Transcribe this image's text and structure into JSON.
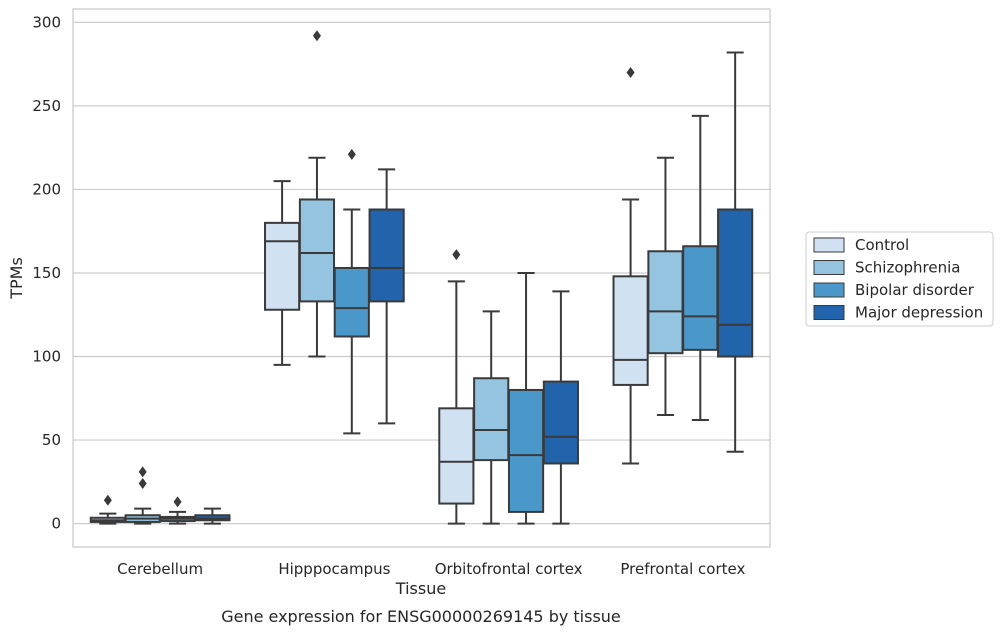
{
  "chart_data": {
    "type": "box",
    "title": "",
    "caption": "Gene expression for ENSG00000269145 by tissue",
    "xlabel": "Tissue",
    "ylabel": "TPMs",
    "ylim": [
      -14,
      308
    ],
    "yticks": [
      0,
      50,
      100,
      150,
      200,
      250,
      300
    ],
    "grid": true,
    "legend_position": "right",
    "categories": [
      "Cerebellum",
      "Hipppocampus",
      "Orbitofrontal cortex",
      "Prefrontal cortex"
    ],
    "series": [
      {
        "name": "Control",
        "color": "#d0e1f2",
        "boxes": [
          {
            "whisker_low": 0,
            "q1": 1,
            "median": 2,
            "q3": 3.5,
            "whisker_high": 6,
            "outliers": [
              14
            ]
          },
          {
            "whisker_low": 95,
            "q1": 128,
            "median": 169,
            "q3": 180,
            "whisker_high": 205,
            "outliers": []
          },
          {
            "whisker_low": 0,
            "q1": 12,
            "median": 37,
            "q3": 69,
            "whisker_high": 145,
            "outliers": [
              161
            ]
          },
          {
            "whisker_low": 36,
            "q1": 83,
            "median": 98,
            "q3": 148,
            "whisker_high": 194,
            "outliers": [
              270
            ]
          }
        ]
      },
      {
        "name": "Schizophrenia",
        "color": "#94c4df",
        "boxes": [
          {
            "whisker_low": 0,
            "q1": 1,
            "median": 3,
            "q3": 5,
            "whisker_high": 9,
            "outliers": [
              24,
              31
            ]
          },
          {
            "whisker_low": 100,
            "q1": 133,
            "median": 162,
            "q3": 194,
            "whisker_high": 219,
            "outliers": [
              292
            ]
          },
          {
            "whisker_low": 0,
            "q1": 38,
            "median": 56,
            "q3": 87,
            "whisker_high": 127,
            "outliers": []
          },
          {
            "whisker_low": 65,
            "q1": 102,
            "median": 127,
            "q3": 163,
            "whisker_high": 219,
            "outliers": []
          }
        ]
      },
      {
        "name": "Bipolar disorder",
        "color": "#4a98c9",
        "boxes": [
          {
            "whisker_low": 0,
            "q1": 1.5,
            "median": 3,
            "q3": 4,
            "whisker_high": 7,
            "outliers": [
              13
            ]
          },
          {
            "whisker_low": 54,
            "q1": 112,
            "median": 129,
            "q3": 153,
            "whisker_high": 188,
            "outliers": [
              221
            ]
          },
          {
            "whisker_low": 0,
            "q1": 7,
            "median": 41,
            "q3": 80,
            "whisker_high": 150,
            "outliers": []
          },
          {
            "whisker_low": 62,
            "q1": 104,
            "median": 124,
            "q3": 166,
            "whisker_high": 244,
            "outliers": []
          }
        ]
      },
      {
        "name": "Major depression",
        "color": "#2264ab",
        "boxes": [
          {
            "whisker_low": 0,
            "q1": 2,
            "median": 3,
            "q3": 5,
            "whisker_high": 9,
            "outliers": []
          },
          {
            "whisker_low": 60,
            "q1": 133,
            "median": 153,
            "q3": 188,
            "whisker_high": 212,
            "outliers": []
          },
          {
            "whisker_low": 0,
            "q1": 36,
            "median": 52,
            "q3": 85,
            "whisker_high": 139,
            "outliers": []
          },
          {
            "whisker_low": 43,
            "q1": 100,
            "median": 119,
            "q3": 188,
            "whisker_high": 282,
            "outliers": []
          }
        ]
      }
    ]
  }
}
